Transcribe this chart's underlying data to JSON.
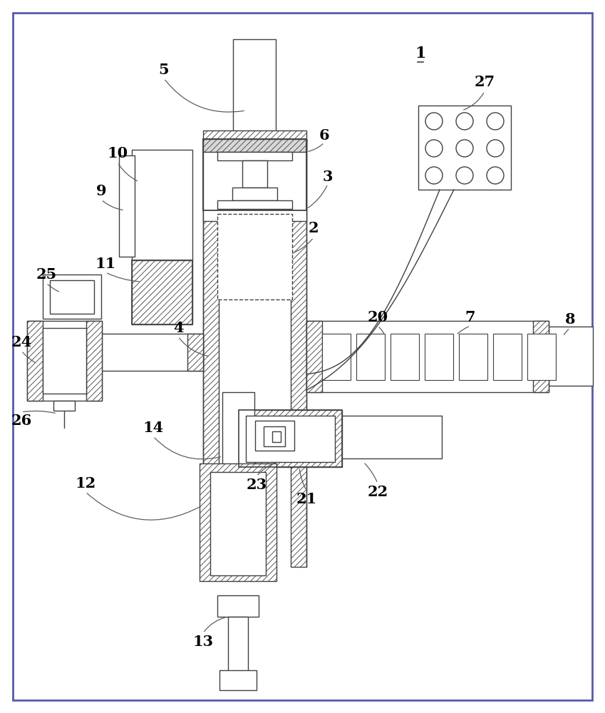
{
  "bg": "#ffffff",
  "lc": "#404040",
  "border_lc": "#5a5aaa",
  "lw": 1.0,
  "fig_w": 8.49,
  "fig_h": 10.0,
  "dpi": 100
}
